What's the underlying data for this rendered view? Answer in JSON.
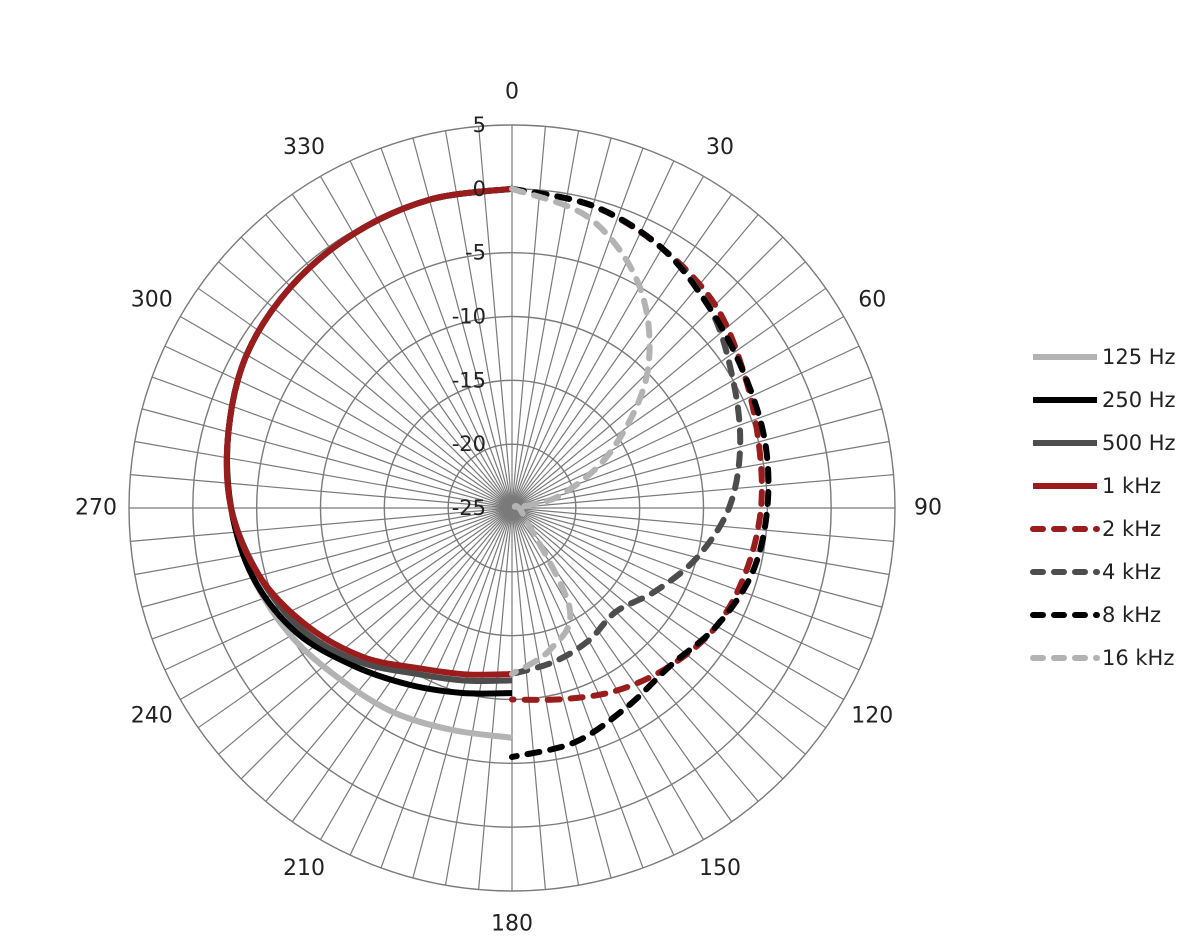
{
  "chart_data": {
    "type": "line",
    "subtype": "polar",
    "angular_axis": {
      "unit": "degrees",
      "direction": "clockwise",
      "zero_at": "top",
      "tick_step": 30,
      "tick_labels": [
        "0",
        "30",
        "60",
        "90",
        "120",
        "150",
        "180",
        "210",
        "240",
        "270",
        "300",
        "330"
      ]
    },
    "radial_axis": {
      "range": [
        -25,
        5
      ],
      "tick_labels": [
        "5",
        "0",
        "-5",
        "-10",
        "-15",
        "-20",
        "-25"
      ]
    },
    "grid": true,
    "legend_position": "right",
    "series": [
      {
        "name": "125 Hz",
        "line_style": "solid",
        "color": "#b3b3b3",
        "points": [
          [
            180,
            -7
          ],
          [
            195,
            -7
          ],
          [
            210,
            -6.5
          ],
          [
            225,
            -6
          ],
          [
            240,
            -5
          ],
          [
            255,
            -4
          ],
          [
            270,
            -3
          ],
          [
            285,
            -2
          ],
          [
            300,
            -1
          ],
          [
            315,
            -0.5
          ],
          [
            330,
            -0.2
          ],
          [
            345,
            0
          ],
          [
            360,
            0
          ]
        ]
      },
      {
        "name": "250 Hz",
        "line_style": "solid",
        "color": "#000000",
        "points": [
          [
            180,
            -10.5
          ],
          [
            195,
            -10
          ],
          [
            210,
            -9
          ],
          [
            225,
            -7.5
          ],
          [
            240,
            -5.5
          ],
          [
            255,
            -4
          ],
          [
            270,
            -3
          ],
          [
            285,
            -2
          ],
          [
            300,
            -1
          ],
          [
            315,
            -0.5
          ],
          [
            330,
            -0.2
          ],
          [
            345,
            0
          ],
          [
            360,
            0
          ]
        ]
      },
      {
        "name": "500 Hz",
        "line_style": "solid",
        "color": "#4d4d4d",
        "points": [
          [
            180,
            -11.5
          ],
          [
            195,
            -11
          ],
          [
            210,
            -10
          ],
          [
            225,
            -8
          ],
          [
            240,
            -6
          ],
          [
            255,
            -4.5
          ],
          [
            270,
            -3
          ],
          [
            285,
            -2
          ],
          [
            300,
            -1
          ],
          [
            315,
            -0.5
          ],
          [
            330,
            -0.2
          ],
          [
            345,
            0
          ],
          [
            360,
            0
          ]
        ]
      },
      {
        "name": "1 kHz",
        "line_style": "solid",
        "color": "#9b1c1c",
        "points": [
          [
            180,
            -12
          ],
          [
            195,
            -11.5
          ],
          [
            210,
            -10.5
          ],
          [
            225,
            -8.5
          ],
          [
            240,
            -6.5
          ],
          [
            255,
            -4.5
          ],
          [
            270,
            -3
          ],
          [
            285,
            -2
          ],
          [
            300,
            -1
          ],
          [
            315,
            -0.5
          ],
          [
            330,
            -0.2
          ],
          [
            345,
            0
          ],
          [
            360,
            0
          ]
        ]
      },
      {
        "name": "2 kHz",
        "line_style": "dashed",
        "color": "#9b1c1c",
        "points": [
          [
            0,
            0
          ],
          [
            15,
            -0.5
          ],
          [
            30,
            -1.5
          ],
          [
            45,
            -2.5
          ],
          [
            60,
            -4
          ],
          [
            75,
            -5
          ],
          [
            90,
            -5.5
          ],
          [
            105,
            -6
          ],
          [
            120,
            -6.5
          ],
          [
            135,
            -7.5
          ],
          [
            150,
            -8.5
          ],
          [
            165,
            -9.5
          ],
          [
            180,
            -10
          ]
        ]
      },
      {
        "name": "4 kHz",
        "line_style": "dashed",
        "color": "#4d4d4d",
        "points": [
          [
            0,
            0
          ],
          [
            15,
            -0.5
          ],
          [
            30,
            -1.5
          ],
          [
            45,
            -3
          ],
          [
            60,
            -5
          ],
          [
            75,
            -6.5
          ],
          [
            90,
            -8
          ],
          [
            105,
            -10
          ],
          [
            120,
            -12
          ],
          [
            135,
            -13.5
          ],
          [
            150,
            -13
          ],
          [
            165,
            -12.5
          ],
          [
            180,
            -12
          ]
        ]
      },
      {
        "name": "8 kHz",
        "line_style": "dashed",
        "color": "#000000",
        "points": [
          [
            0,
            0
          ],
          [
            15,
            -0.5
          ],
          [
            30,
            -1.5
          ],
          [
            45,
            -3
          ],
          [
            60,
            -4
          ],
          [
            75,
            -4.5
          ],
          [
            90,
            -5
          ],
          [
            105,
            -5.5
          ],
          [
            120,
            -6.5
          ],
          [
            135,
            -7.5
          ],
          [
            150,
            -7
          ],
          [
            165,
            -6
          ],
          [
            180,
            -5.5
          ]
        ]
      },
      {
        "name": "16 kHz",
        "line_style": "dashed",
        "color": "#b3b3b3",
        "points": [
          [
            0,
            0
          ],
          [
            15,
            -1.5
          ],
          [
            30,
            -5
          ],
          [
            45,
            -10
          ],
          [
            60,
            -16
          ],
          [
            75,
            -21
          ],
          [
            90,
            -24.5
          ],
          [
            120,
            -24
          ],
          [
            150,
            -16
          ],
          [
            165,
            -13.5
          ],
          [
            180,
            -12
          ]
        ]
      }
    ]
  }
}
